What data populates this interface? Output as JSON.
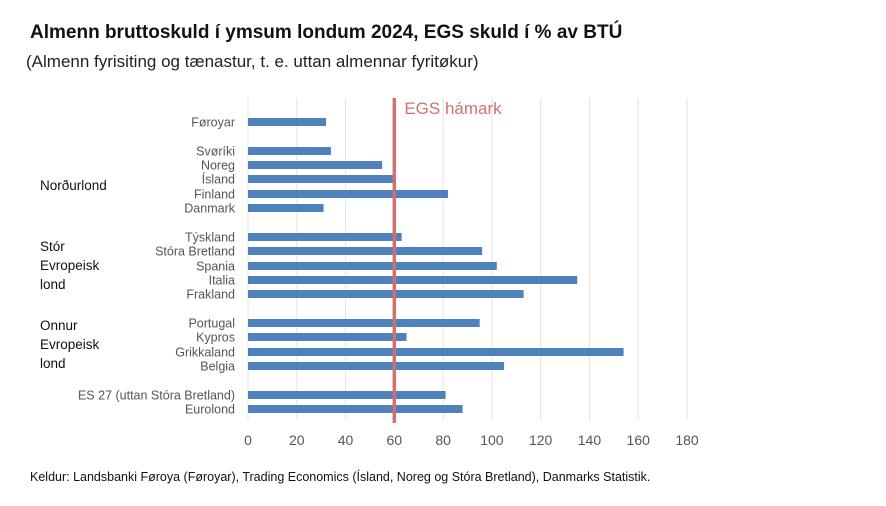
{
  "header": {
    "title": "Almenn bruttoskuld í ymsum londum 2024, EGS skuld í % av BTÚ",
    "subtitle": "(Almenn fyrisiting og tænastur, t. e. uttan almennar fyritøkur)"
  },
  "footer": {
    "source": "Keldur: Landsbanki Føroya (Føroyar), Trading Economics (Ísland, Noreg og Stóra Bretland), Danmarks Statistik."
  },
  "groups": {
    "nordic": "Norðurlond",
    "big_europe_1": "Stór",
    "big_europe_2": "Evropeisk",
    "big_europe_3": "lond",
    "other_europe_1": "Onnur",
    "other_europe_2": "Evropeisk",
    "other_europe_3": "lond"
  },
  "colors": {
    "bar": "#4f81bd",
    "reference_line": "#d07070",
    "grid": "#e3e3e3"
  },
  "chart_data": {
    "type": "bar",
    "orientation": "horizontal",
    "categories": [
      "Føroyar",
      "Svøríki",
      "Noreg",
      "Ísland",
      "Finland",
      "Danmark",
      "Týskland",
      "Stóra Bretland",
      "Spania",
      "Italia",
      "Frakland",
      "Portugal",
      "Kypros",
      "Grikkaland",
      "Belgia",
      "ES 27 (uttan Stóra Bretland)",
      "Eurolond"
    ],
    "values": [
      32,
      34,
      55,
      60,
      82,
      31,
      63,
      96,
      102,
      135,
      113,
      95,
      65,
      154,
      105,
      81,
      88
    ],
    "xlim": [
      0,
      180
    ],
    "xticks": [
      0,
      20,
      40,
      60,
      80,
      100,
      120,
      140,
      160,
      180
    ],
    "grid": "vertical",
    "reference_line": {
      "value": 60,
      "label": "EGS hámark"
    }
  }
}
